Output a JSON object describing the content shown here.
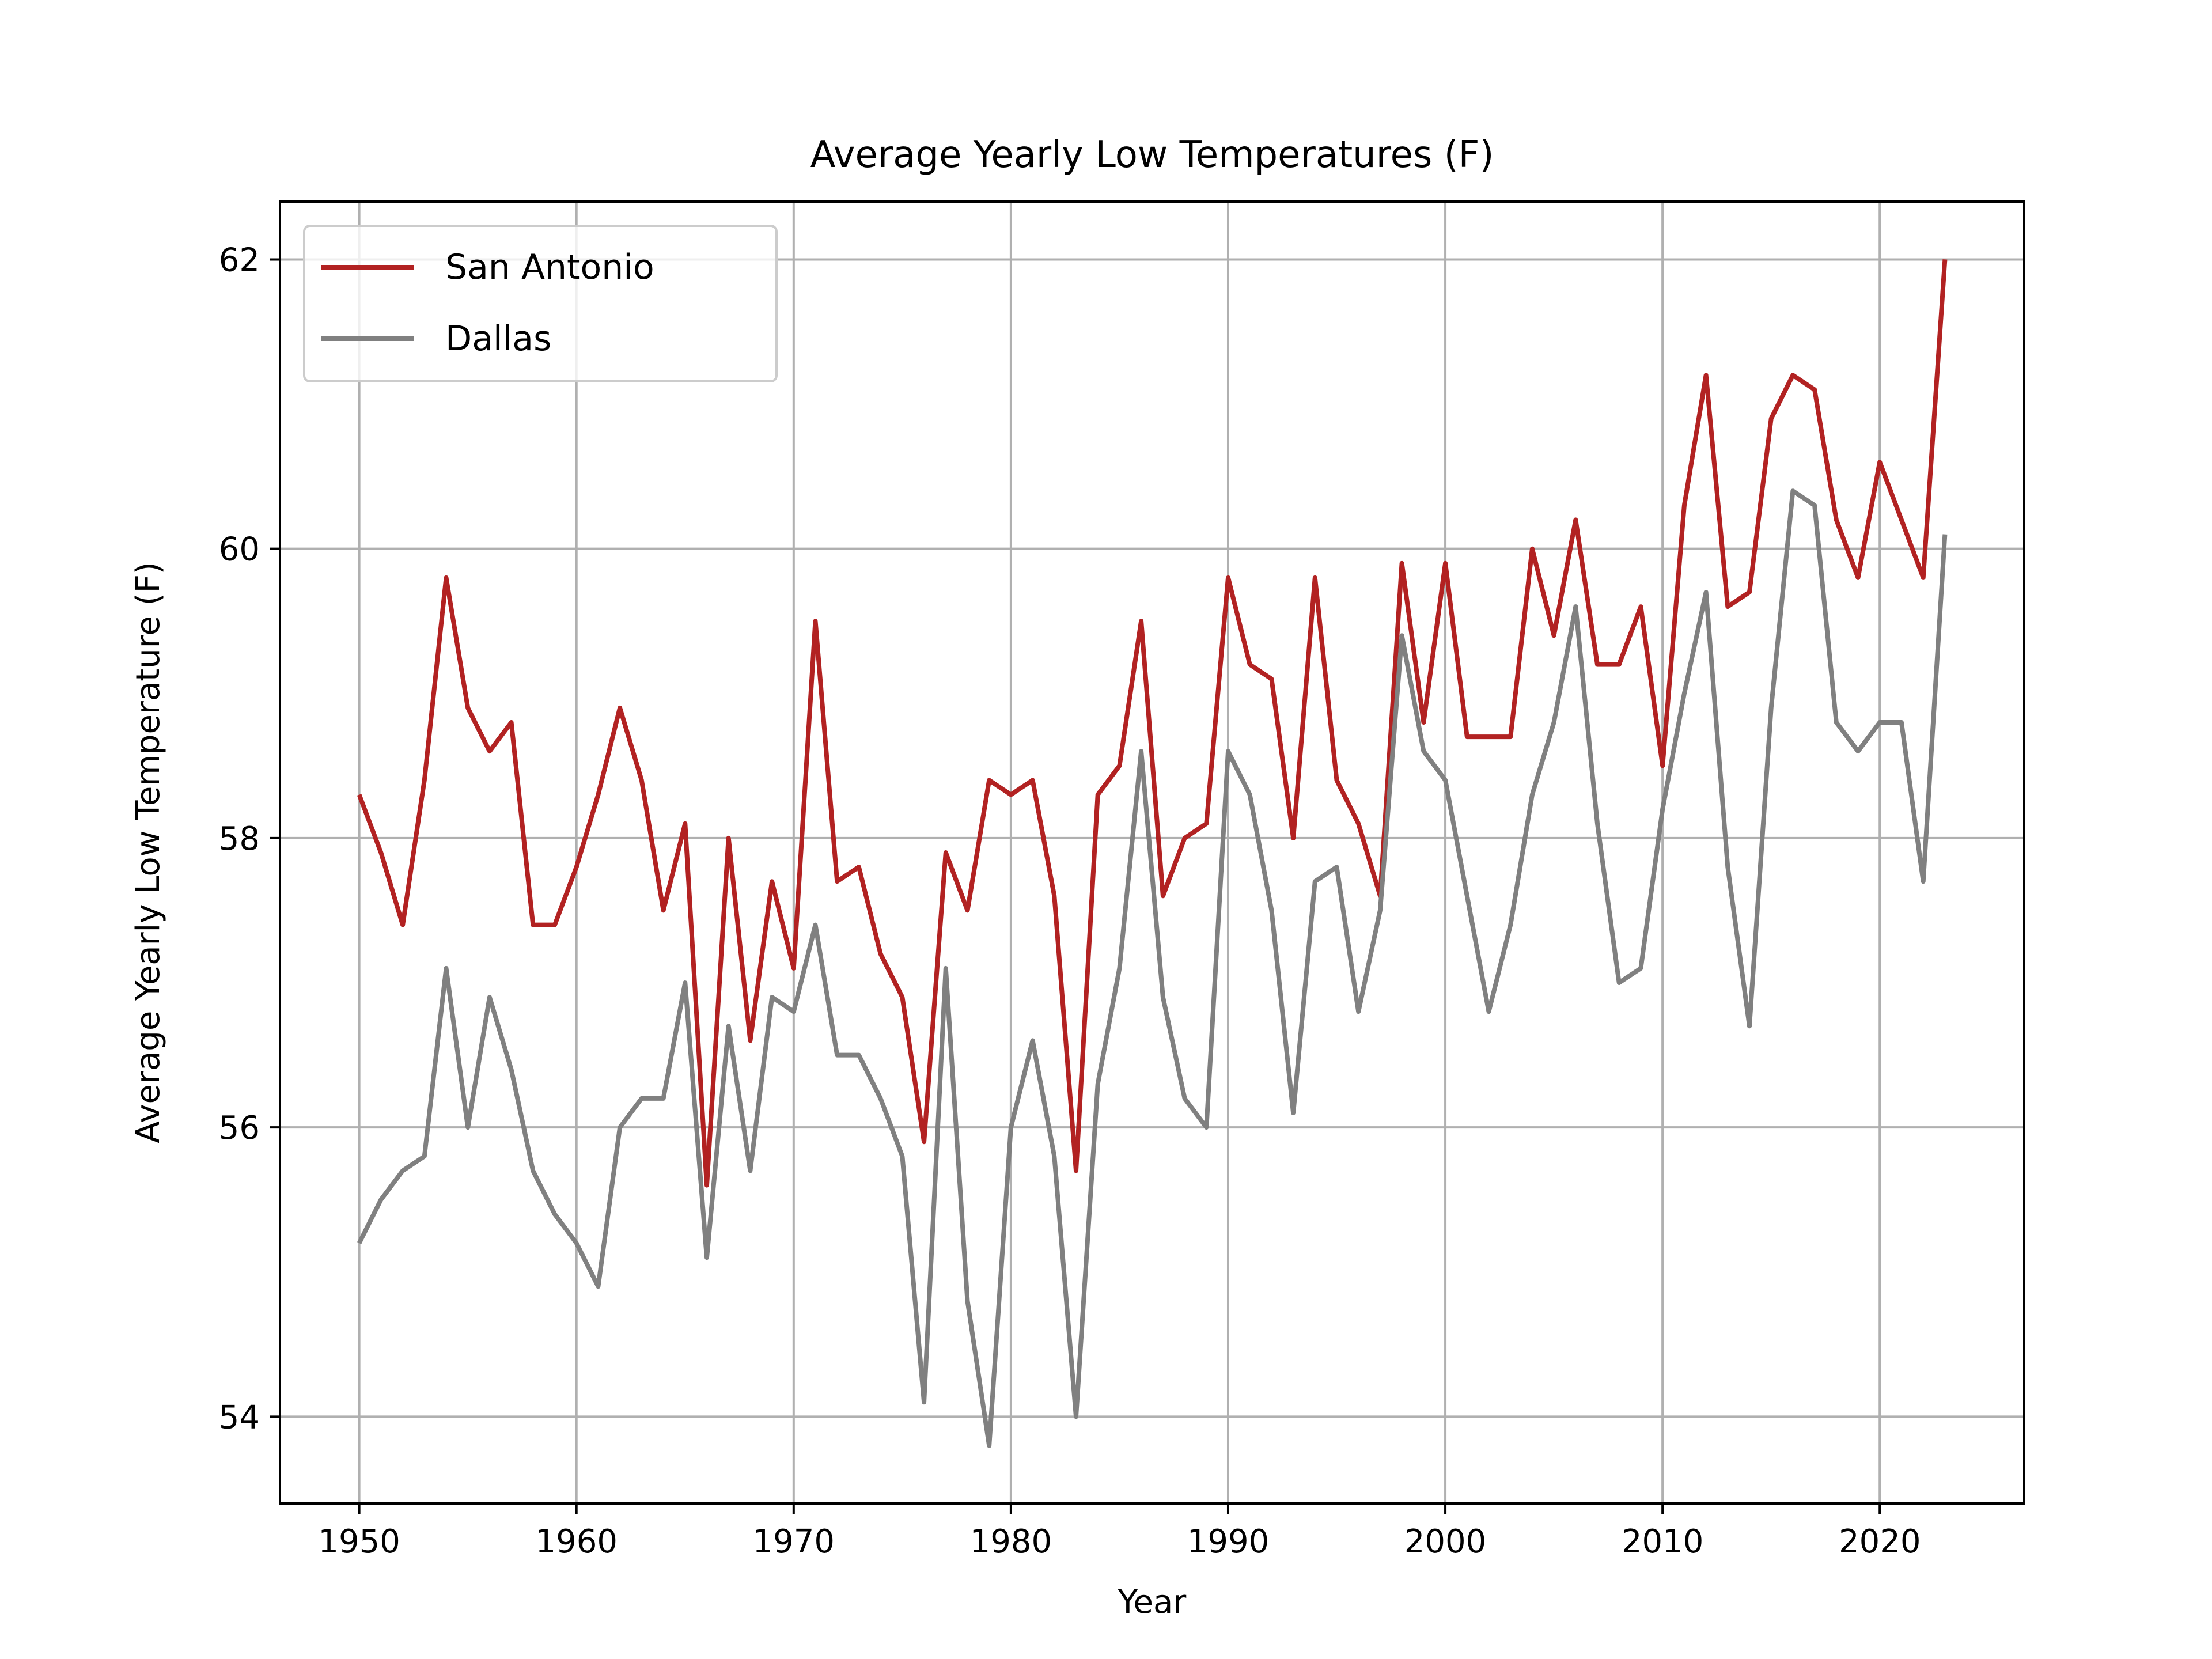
{
  "chart_data": {
    "type": "line",
    "title": "Average Yearly Low Temperatures (F)",
    "xlabel": "Year",
    "ylabel": "Average Yearly Low Temperature (F)",
    "xlim": [
      1946.35,
      2026.65
    ],
    "ylim": [
      53.4,
      62.4
    ],
    "xticks": [
      1950,
      1960,
      1970,
      1980,
      1990,
      2000,
      2010,
      2020
    ],
    "yticks": [
      54,
      56,
      58,
      60,
      62
    ],
    "grid": true,
    "legend_position": "top-left",
    "x": [
      1950,
      1951,
      1952,
      1953,
      1954,
      1955,
      1956,
      1957,
      1958,
      1959,
      1960,
      1961,
      1962,
      1963,
      1964,
      1965,
      1966,
      1967,
      1968,
      1969,
      1970,
      1971,
      1972,
      1973,
      1974,
      1975,
      1976,
      1977,
      1978,
      1979,
      1980,
      1981,
      1982,
      1983,
      1984,
      1985,
      1986,
      1987,
      1988,
      1989,
      1990,
      1991,
      1992,
      1993,
      1994,
      1995,
      1996,
      1997,
      1998,
      1999,
      2000,
      2001,
      2002,
      2003,
      2004,
      2005,
      2006,
      2007,
      2008,
      2009,
      2010,
      2011,
      2012,
      2013,
      2014,
      2015,
      2016,
      2017,
      2018,
      2019,
      2020,
      2021,
      2022,
      2023
    ],
    "series": [
      {
        "name": "San Antonio",
        "color": "#b22222",
        "values": [
          58.3,
          57.9,
          57.4,
          58.4,
          59.8,
          58.9,
          58.6,
          58.8,
          57.4,
          57.4,
          57.8,
          58.3,
          58.9,
          58.4,
          57.5,
          58.1,
          55.6,
          58.0,
          56.6,
          57.7,
          57.1,
          59.5,
          57.7,
          57.8,
          57.2,
          56.9,
          55.9,
          57.9,
          57.5,
          58.4,
          58.3,
          58.4,
          57.6,
          55.7,
          58.3,
          58.5,
          59.5,
          57.6,
          58.0,
          58.1,
          59.8,
          59.2,
          59.1,
          58.0,
          59.8,
          58.4,
          58.1,
          57.6,
          59.9,
          58.8,
          59.9,
          58.7,
          58.7,
          58.7,
          60.0,
          59.4,
          60.2,
          59.2,
          59.2,
          59.6,
          58.5,
          60.3,
          61.2,
          59.6,
          59.7,
          60.9,
          61.2,
          61.1,
          60.2,
          59.8,
          60.6,
          60.2,
          59.8,
          62.0
        ]
      },
      {
        "name": "Dallas",
        "color": "#808080",
        "values": [
          55.2,
          55.5,
          55.7,
          55.8,
          57.1,
          56.0,
          56.9,
          56.4,
          55.7,
          55.4,
          55.2,
          54.9,
          56.0,
          56.2,
          56.2,
          57.0,
          55.1,
          56.7,
          55.7,
          56.9,
          56.8,
          57.4,
          56.5,
          56.5,
          56.2,
          55.8,
          54.1,
          57.1,
          54.8,
          53.8,
          56.0,
          56.6,
          55.8,
          54.0,
          56.3,
          57.1,
          58.6,
          56.9,
          56.2,
          56.0,
          58.6,
          58.3,
          57.5,
          56.1,
          57.7,
          57.8,
          56.8,
          57.5,
          59.4,
          58.6,
          58.4,
          57.6,
          56.8,
          57.4,
          58.3,
          58.8,
          59.6,
          58.1,
          57.0,
          57.1,
          58.2,
          59.0,
          59.7,
          57.8,
          56.7,
          58.9,
          60.4,
          60.3,
          58.8,
          58.6,
          58.8,
          58.8,
          57.7,
          60.1
        ]
      }
    ]
  }
}
